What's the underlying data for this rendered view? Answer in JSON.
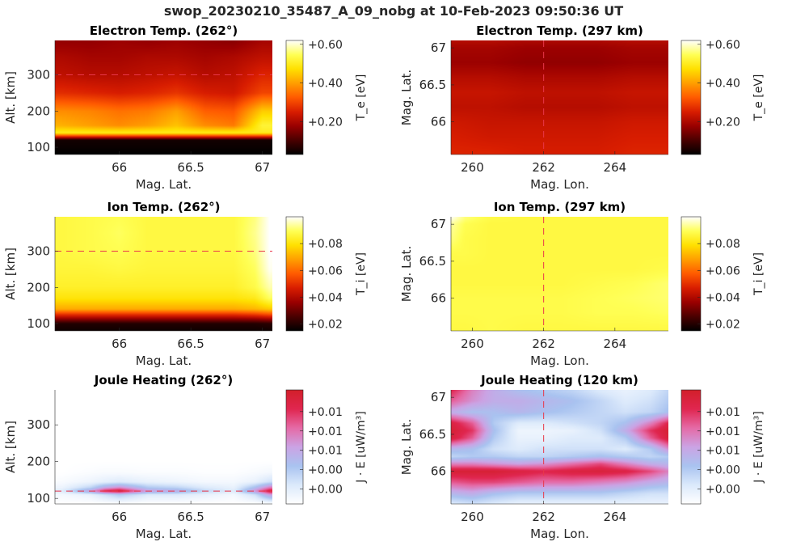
{
  "figure_title": "swop_20230210_35487_A_09_nobg at 10-Feb-2023 09:50:36 UT",
  "colormaps": {
    "hot": [
      "#000000",
      "#4a0000",
      "#9a0000",
      "#d81d00",
      "#ff5a00",
      "#ff9e00",
      "#ffe000",
      "#ffff55",
      "#ffffff"
    ],
    "pinkblue": [
      "#ffffff",
      "#dbe9fb",
      "#a9c3f0",
      "#cba3e4",
      "#e56aa6",
      "#e0264f",
      "#d21f2a"
    ]
  },
  "chart_data": [
    {
      "id": "te-alt",
      "type": "heatmap",
      "title": "Electron Temp. (262°)",
      "xlabel": "Mag. Lat.",
      "ylabel": "Alt. [km]",
      "xlim": [
        65.55,
        67.07
      ],
      "ylim": [
        80,
        395
      ],
      "xticks": [
        66,
        66.5,
        67
      ],
      "xticklabels": [
        "66",
        "66.5",
        "67"
      ],
      "yticks": [
        100,
        200,
        300
      ],
      "yticklabels": [
        "100",
        "200",
        "300"
      ],
      "colormap": "hot",
      "clim": [
        0.03,
        0.62
      ],
      "colorbar_label": "T_e [eV]",
      "colorbar_ticks": [
        0.2,
        0.4,
        0.6
      ],
      "colorbar_ticklabels": [
        "+0.20",
        "+0.40",
        "+0.60"
      ],
      "reference_line": {
        "axis": "y",
        "value": 300
      },
      "x": [
        65.6,
        65.8,
        66.0,
        66.2,
        66.4,
        66.6,
        66.8,
        67.0
      ],
      "y": [
        80,
        120,
        140,
        160,
        200,
        250,
        300,
        350,
        395
      ],
      "z": [
        [
          0.03,
          0.03,
          0.03,
          0.03,
          0.03,
          0.03,
          0.03,
          0.03
        ],
        [
          0.05,
          0.05,
          0.05,
          0.05,
          0.05,
          0.05,
          0.05,
          0.05
        ],
        [
          0.5,
          0.5,
          0.5,
          0.5,
          0.5,
          0.5,
          0.5,
          0.5
        ],
        [
          0.42,
          0.4,
          0.38,
          0.4,
          0.44,
          0.38,
          0.36,
          0.52
        ],
        [
          0.38,
          0.37,
          0.35,
          0.36,
          0.4,
          0.33,
          0.32,
          0.45
        ],
        [
          0.27,
          0.26,
          0.25,
          0.26,
          0.28,
          0.25,
          0.24,
          0.3
        ],
        [
          0.22,
          0.21,
          0.21,
          0.22,
          0.23,
          0.21,
          0.22,
          0.26
        ],
        [
          0.2,
          0.19,
          0.19,
          0.2,
          0.2,
          0.19,
          0.2,
          0.22
        ],
        [
          0.17,
          0.17,
          0.18,
          0.17,
          0.18,
          0.17,
          0.16,
          0.19
        ]
      ]
    },
    {
      "id": "te-map",
      "type": "heatmap",
      "title": "Electron Temp. (297 km)",
      "xlabel": "Mag. Lon.",
      "ylabel": "Mag. Lat.",
      "xlim": [
        259.4,
        265.5
      ],
      "ylim": [
        65.56,
        67.1
      ],
      "xticks": [
        260,
        262,
        264
      ],
      "xticklabels": [
        "260",
        "262",
        "264"
      ],
      "yticks": [
        66,
        66.5,
        67
      ],
      "yticklabels": [
        "66",
        "66.5",
        "67"
      ],
      "colormap": "hot",
      "clim": [
        0.03,
        0.62
      ],
      "colorbar_label": "T_e [eV]",
      "colorbar_ticks": [
        0.2,
        0.4,
        0.6
      ],
      "colorbar_ticklabels": [
        "+0.20",
        "+0.40",
        "+0.60"
      ],
      "reference_line": {
        "axis": "x",
        "value": 262
      },
      "x": [
        259.4,
        260.5,
        261.5,
        262.5,
        263.5,
        264.5,
        265.5
      ],
      "y": [
        65.56,
        65.8,
        66.0,
        66.2,
        66.4,
        66.6,
        66.8,
        67.0,
        67.1
      ],
      "z": [
        [
          0.26,
          0.26,
          0.25,
          0.25,
          0.25,
          0.26,
          0.26
        ],
        [
          0.25,
          0.24,
          0.24,
          0.24,
          0.24,
          0.25,
          0.25
        ],
        [
          0.24,
          0.23,
          0.23,
          0.23,
          0.23,
          0.24,
          0.24
        ],
        [
          0.22,
          0.22,
          0.21,
          0.21,
          0.21,
          0.22,
          0.22
        ],
        [
          0.23,
          0.23,
          0.22,
          0.22,
          0.22,
          0.23,
          0.23
        ],
        [
          0.21,
          0.21,
          0.2,
          0.2,
          0.2,
          0.21,
          0.21
        ],
        [
          0.18,
          0.18,
          0.17,
          0.17,
          0.17,
          0.18,
          0.18
        ],
        [
          0.19,
          0.19,
          0.18,
          0.18,
          0.18,
          0.19,
          0.19
        ],
        [
          0.21,
          0.21,
          0.2,
          0.2,
          0.2,
          0.21,
          0.21
        ]
      ]
    },
    {
      "id": "ti-alt",
      "type": "heatmap",
      "title": "Ion Temp. (262°)",
      "xlabel": "Mag. Lat.",
      "ylabel": "Alt. [km]",
      "xlim": [
        65.55,
        67.07
      ],
      "ylim": [
        80,
        395
      ],
      "xticks": [
        66,
        66.5,
        67
      ],
      "xticklabels": [
        "66",
        "66.5",
        "67"
      ],
      "yticks": [
        100,
        200,
        300
      ],
      "yticklabels": [
        "100",
        "200",
        "300"
      ],
      "colormap": "hot",
      "clim": [
        0.015,
        0.1
      ],
      "colorbar_label": "T_i [eV]",
      "colorbar_ticks": [
        0.02,
        0.04,
        0.06,
        0.08
      ],
      "colorbar_ticklabels": [
        "+0.02",
        "+0.04",
        "+0.06",
        "+0.08"
      ],
      "reference_line": {
        "axis": "y",
        "value": 300
      },
      "x": [
        65.6,
        65.8,
        66.0,
        66.2,
        66.4,
        66.6,
        66.8,
        66.95,
        67.05
      ],
      "y": [
        80,
        100,
        125,
        140,
        170,
        200,
        250,
        300,
        350,
        395
      ],
      "z": [
        [
          0.017,
          0.017,
          0.017,
          0.017,
          0.017,
          0.017,
          0.017,
          0.017,
          0.017
        ],
        [
          0.02,
          0.02,
          0.02,
          0.02,
          0.02,
          0.02,
          0.02,
          0.02,
          0.021
        ],
        [
          0.05,
          0.05,
          0.05,
          0.05,
          0.05,
          0.05,
          0.05,
          0.052,
          0.055
        ],
        [
          0.07,
          0.07,
          0.07,
          0.07,
          0.07,
          0.07,
          0.07,
          0.072,
          0.075
        ],
        [
          0.08,
          0.08,
          0.08,
          0.08,
          0.08,
          0.08,
          0.08,
          0.082,
          0.09
        ],
        [
          0.084,
          0.084,
          0.084,
          0.084,
          0.084,
          0.084,
          0.084,
          0.088,
          0.095
        ],
        [
          0.086,
          0.086,
          0.087,
          0.086,
          0.086,
          0.086,
          0.086,
          0.09,
          0.099
        ],
        [
          0.087,
          0.088,
          0.089,
          0.087,
          0.087,
          0.087,
          0.087,
          0.092,
          0.1
        ],
        [
          0.087,
          0.088,
          0.09,
          0.087,
          0.087,
          0.087,
          0.087,
          0.093,
          0.1
        ],
        [
          0.087,
          0.088,
          0.089,
          0.087,
          0.087,
          0.087,
          0.087,
          0.092,
          0.1
        ]
      ]
    },
    {
      "id": "ti-map",
      "type": "heatmap",
      "title": "Ion Temp. (297 km)",
      "xlabel": "Mag. Lon.",
      "ylabel": "Mag. Lat.",
      "xlim": [
        259.4,
        265.5
      ],
      "ylim": [
        65.56,
        67.1
      ],
      "xticks": [
        260,
        262,
        264
      ],
      "xticklabels": [
        "260",
        "262",
        "264"
      ],
      "yticks": [
        66,
        66.5,
        67
      ],
      "yticklabels": [
        "66",
        "66.5",
        "67"
      ],
      "colormap": "hot",
      "clim": [
        0.015,
        0.1
      ],
      "colorbar_label": "T_i [eV]",
      "colorbar_ticks": [
        0.02,
        0.04,
        0.06,
        0.08
      ],
      "colorbar_ticklabels": [
        "+0.02",
        "+0.04",
        "+0.06",
        "+0.08"
      ],
      "reference_line": {
        "axis": "x",
        "value": 262
      },
      "x": [
        259.4,
        259.8,
        260.5,
        261.5,
        262.5,
        263.5,
        264.5,
        265.5
      ],
      "y": [
        65.56,
        65.8,
        66.0,
        66.2,
        66.4,
        66.6,
        66.8,
        67.0,
        67.1
      ],
      "z": [
        [
          0.087,
          0.087,
          0.088,
          0.087,
          0.087,
          0.087,
          0.087,
          0.087
        ],
        [
          0.088,
          0.088,
          0.088,
          0.088,
          0.088,
          0.089,
          0.089,
          0.09
        ],
        [
          0.088,
          0.088,
          0.088,
          0.088,
          0.088,
          0.089,
          0.09,
          0.091
        ],
        [
          0.087,
          0.087,
          0.087,
          0.087,
          0.087,
          0.088,
          0.089,
          0.091
        ],
        [
          0.087,
          0.087,
          0.087,
          0.087,
          0.087,
          0.087,
          0.087,
          0.088
        ],
        [
          0.088,
          0.088,
          0.087,
          0.087,
          0.087,
          0.087,
          0.087,
          0.087
        ],
        [
          0.092,
          0.088,
          0.087,
          0.087,
          0.087,
          0.087,
          0.087,
          0.087
        ],
        [
          0.094,
          0.089,
          0.087,
          0.087,
          0.087,
          0.087,
          0.087,
          0.087
        ],
        [
          0.1,
          0.092,
          0.088,
          0.087,
          0.087,
          0.087,
          0.087,
          0.087
        ]
      ]
    },
    {
      "id": "jh-alt",
      "type": "heatmap",
      "title": "Joule Heating (262°)",
      "xlabel": "Mag. Lat.",
      "ylabel": "Alt. [km]",
      "xlim": [
        65.55,
        67.07
      ],
      "ylim": [
        85,
        395
      ],
      "xticks": [
        66,
        66.5,
        67
      ],
      "xticklabels": [
        "66",
        "66.5",
        "67"
      ],
      "yticks": [
        100,
        200,
        300
      ],
      "yticklabels": [
        "100",
        "200",
        "300"
      ],
      "colormap": "pinkblue",
      "clim": [
        0,
        1
      ],
      "colorbar_label": "J · E [uW/m³]",
      "colorbar_ticks": [
        0.13,
        0.3,
        0.47,
        0.64,
        0.81
      ],
      "colorbar_ticklabels": [
        "+0.00",
        "+0.00",
        "+0.01",
        "+0.01",
        "+0.01"
      ],
      "reference_line": {
        "axis": "y",
        "value": 120
      },
      "x": [
        65.6,
        65.8,
        65.9,
        66.0,
        66.2,
        66.4,
        66.6,
        66.8,
        66.95,
        67.05
      ],
      "y": [
        85,
        110,
        120,
        130,
        145,
        170,
        200,
        300,
        395
      ],
      "z": [
        [
          0.0,
          0.0,
          0.0,
          0.0,
          0.0,
          0.0,
          0.0,
          0.0,
          0.0,
          0.0
        ],
        [
          0.05,
          0.1,
          0.2,
          0.3,
          0.15,
          0.15,
          0.1,
          0.05,
          0.2,
          0.5
        ],
        [
          0.15,
          0.5,
          0.85,
          0.95,
          0.5,
          0.45,
          0.25,
          0.15,
          0.55,
          0.92
        ],
        [
          0.08,
          0.25,
          0.45,
          0.55,
          0.3,
          0.25,
          0.15,
          0.1,
          0.35,
          0.6
        ],
        [
          0.03,
          0.08,
          0.12,
          0.15,
          0.1,
          0.08,
          0.05,
          0.05,
          0.1,
          0.2
        ],
        [
          0.0,
          0.02,
          0.03,
          0.03,
          0.02,
          0.02,
          0.01,
          0.01,
          0.03,
          0.05
        ],
        [
          0.0,
          0.0,
          0.0,
          0.0,
          0.0,
          0.0,
          0.0,
          0.0,
          0.0,
          0.0
        ],
        [
          0.0,
          0.0,
          0.0,
          0.0,
          0.0,
          0.0,
          0.0,
          0.0,
          0.0,
          0.0
        ],
        [
          0.0,
          0.0,
          0.0,
          0.0,
          0.0,
          0.0,
          0.0,
          0.0,
          0.0,
          0.0
        ]
      ]
    },
    {
      "id": "jh-map",
      "type": "heatmap",
      "title": "Joule Heating (120 km)",
      "xlabel": "Mag. Lon.",
      "ylabel": "Mag. Lat.",
      "xlim": [
        259.4,
        265.5
      ],
      "ylim": [
        65.56,
        67.1
      ],
      "xticks": [
        260,
        262,
        264
      ],
      "xticklabels": [
        "260",
        "262",
        "264"
      ],
      "yticks": [
        66,
        66.5,
        67
      ],
      "yticklabels": [
        "66",
        "66.5",
        "67"
      ],
      "colormap": "pinkblue",
      "clim": [
        0,
        1
      ],
      "colorbar_label": "J · E [uW/m³]",
      "colorbar_ticks": [
        0.13,
        0.3,
        0.47,
        0.64,
        0.81
      ],
      "colorbar_ticklabels": [
        "+0.00",
        "+0.00",
        "+0.01",
        "+0.01",
        "+0.01"
      ],
      "reference_line": {
        "axis": "x",
        "value": 262
      },
      "x": [
        259.4,
        260.0,
        260.6,
        261.3,
        262.0,
        262.8,
        263.6,
        264.3,
        265.0,
        265.5
      ],
      "y": [
        65.56,
        65.7,
        65.85,
        66.0,
        66.1,
        66.2,
        66.3,
        66.45,
        66.55,
        66.65,
        66.8,
        66.95,
        67.1
      ],
      "z": [
        [
          0.15,
          0.2,
          0.15,
          0.1,
          0.1,
          0.1,
          0.1,
          0.1,
          0.1,
          0.1
        ],
        [
          0.4,
          0.45,
          0.35,
          0.3,
          0.3,
          0.3,
          0.3,
          0.25,
          0.2,
          0.2
        ],
        [
          0.7,
          0.75,
          0.75,
          0.7,
          0.65,
          0.65,
          0.6,
          0.55,
          0.45,
          0.4
        ],
        [
          0.95,
          0.95,
          0.95,
          0.9,
          0.85,
          0.9,
          0.92,
          0.88,
          0.75,
          0.6
        ],
        [
          0.6,
          0.6,
          0.55,
          0.5,
          0.55,
          0.65,
          0.75,
          0.6,
          0.45,
          0.4
        ],
        [
          0.25,
          0.3,
          0.3,
          0.25,
          0.25,
          0.3,
          0.35,
          0.3,
          0.25,
          0.3
        ],
        [
          0.4,
          0.35,
          0.2,
          0.15,
          0.2,
          0.2,
          0.2,
          0.15,
          0.3,
          0.55
        ],
        [
          0.92,
          0.7,
          0.3,
          0.1,
          0.1,
          0.15,
          0.15,
          0.3,
          0.7,
          0.92
        ],
        [
          0.95,
          0.8,
          0.35,
          0.08,
          0.08,
          0.1,
          0.2,
          0.45,
          0.8,
          0.95
        ],
        [
          0.9,
          0.7,
          0.3,
          0.15,
          0.15,
          0.2,
          0.25,
          0.35,
          0.6,
          0.85
        ],
        [
          0.45,
          0.35,
          0.35,
          0.4,
          0.35,
          0.3,
          0.25,
          0.2,
          0.25,
          0.35
        ],
        [
          0.7,
          0.55,
          0.45,
          0.45,
          0.4,
          0.35,
          0.25,
          0.15,
          0.2,
          0.3
        ],
        [
          0.85,
          0.6,
          0.45,
          0.35,
          0.3,
          0.25,
          0.15,
          0.1,
          0.15,
          0.25
        ]
      ]
    }
  ]
}
